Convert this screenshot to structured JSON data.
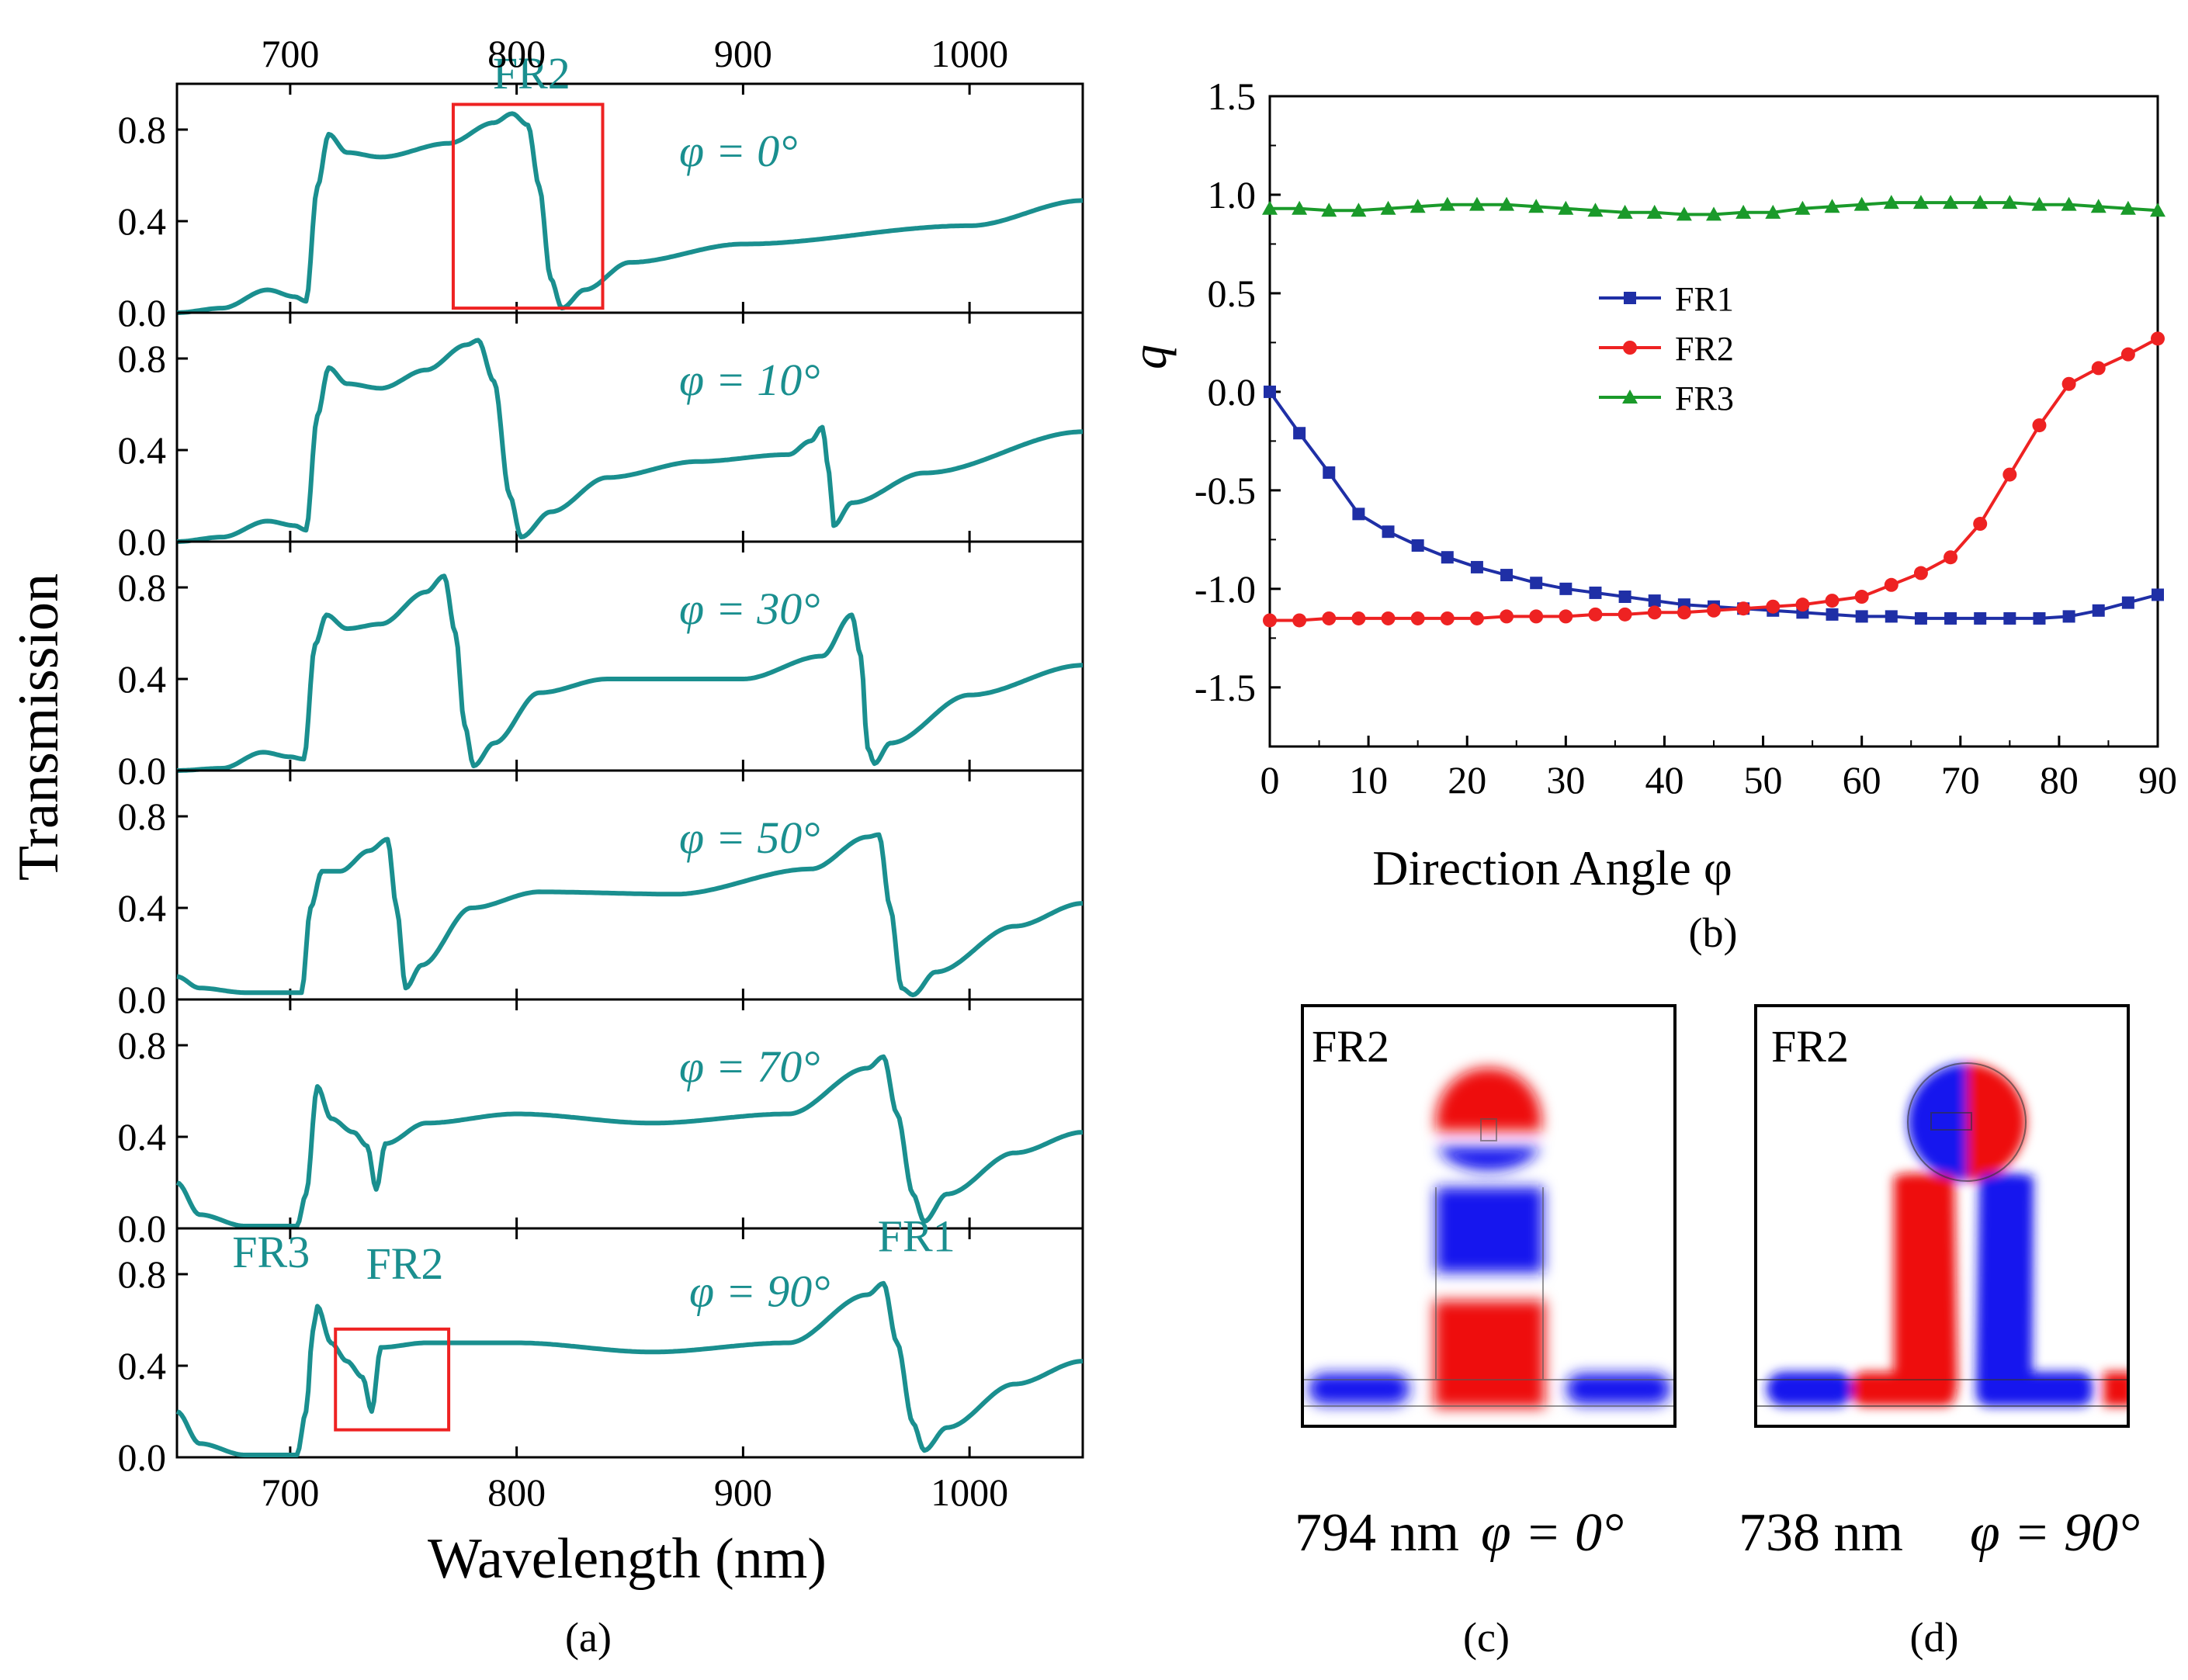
{
  "colors": {
    "teal": "#1a8f8f",
    "fr1": "#1f2fa6",
    "fr2": "#ee2222",
    "fr3": "#1a9a2a",
    "highlight_box": "#ee2222",
    "field_red": "#ee1111",
    "field_blue": "#1515ee"
  },
  "panel_a": {
    "caption": "(a)",
    "ylabel": "Transmission",
    "xlabel": "Wavelength (nm)",
    "xlim": [
      650,
      1050
    ],
    "ylim": [
      0,
      1.0
    ],
    "xticks": [
      "700",
      "800",
      "900",
      "1000"
    ],
    "yticks": [
      "0.0",
      "0.4",
      "0.8"
    ],
    "top_xticks": [
      "700",
      "800",
      "900",
      "1000"
    ],
    "subplots": [
      {
        "angle_label": "φ = 0°",
        "angle_deg": 0,
        "key_points": [
          [
            650,
            0.0
          ],
          [
            670,
            0.02
          ],
          [
            690,
            0.1
          ],
          [
            702,
            0.07
          ],
          [
            707,
            0.05
          ],
          [
            712,
            0.55
          ],
          [
            717,
            0.78
          ],
          [
            725,
            0.7
          ],
          [
            740,
            0.68
          ],
          [
            770,
            0.74
          ],
          [
            790,
            0.83
          ],
          [
            798,
            0.87
          ],
          [
            805,
            0.82
          ],
          [
            810,
            0.55
          ],
          [
            815,
            0.15
          ],
          [
            820,
            0.02
          ],
          [
            830,
            0.1
          ],
          [
            850,
            0.22
          ],
          [
            900,
            0.3
          ],
          [
            1000,
            0.38
          ],
          [
            1050,
            0.49
          ]
        ],
        "annotations": [
          {
            "label": "FR2",
            "x": 810,
            "y": 0.98,
            "box": {
              "x0": 772,
              "x1": 838,
              "y0": 0.02,
              "y1": 0.91
            }
          }
        ]
      },
      {
        "angle_label": "φ = 10°",
        "angle_deg": 10,
        "key_points": [
          [
            650,
            0.0
          ],
          [
            670,
            0.02
          ],
          [
            690,
            0.09
          ],
          [
            702,
            0.07
          ],
          [
            707,
            0.05
          ],
          [
            712,
            0.55
          ],
          [
            717,
            0.76
          ],
          [
            725,
            0.69
          ],
          [
            740,
            0.67
          ],
          [
            760,
            0.75
          ],
          [
            778,
            0.86
          ],
          [
            783,
            0.88
          ],
          [
            790,
            0.7
          ],
          [
            797,
            0.2
          ],
          [
            802,
            0.02
          ],
          [
            815,
            0.13
          ],
          [
            840,
            0.28
          ],
          [
            880,
            0.35
          ],
          [
            920,
            0.38
          ],
          [
            930,
            0.44
          ],
          [
            935,
            0.5
          ],
          [
            938,
            0.3
          ],
          [
            940,
            0.07
          ],
          [
            948,
            0.17
          ],
          [
            980,
            0.3
          ],
          [
            1050,
            0.48
          ]
        ],
        "annotations": []
      },
      {
        "angle_label": "φ = 30°",
        "angle_deg": 30,
        "key_points": [
          [
            650,
            0.0
          ],
          [
            670,
            0.01
          ],
          [
            688,
            0.08
          ],
          [
            700,
            0.06
          ],
          [
            706,
            0.05
          ],
          [
            711,
            0.55
          ],
          [
            716,
            0.68
          ],
          [
            725,
            0.62
          ],
          [
            740,
            0.64
          ],
          [
            760,
            0.78
          ],
          [
            768,
            0.85
          ],
          [
            773,
            0.6
          ],
          [
            777,
            0.2
          ],
          [
            781,
            0.02
          ],
          [
            790,
            0.12
          ],
          [
            810,
            0.34
          ],
          [
            840,
            0.4
          ],
          [
            900,
            0.4
          ],
          [
            935,
            0.5
          ],
          [
            948,
            0.68
          ],
          [
            952,
            0.5
          ],
          [
            955,
            0.1
          ],
          [
            958,
            0.03
          ],
          [
            965,
            0.12
          ],
          [
            1000,
            0.33
          ],
          [
            1050,
            0.46
          ]
        ],
        "annotations": []
      },
      {
        "angle_label": "φ = 50°",
        "angle_deg": 50,
        "key_points": [
          [
            650,
            0.1
          ],
          [
            660,
            0.05
          ],
          [
            680,
            0.03
          ],
          [
            698,
            0.03
          ],
          [
            705,
            0.03
          ],
          [
            709,
            0.4
          ],
          [
            714,
            0.56
          ],
          [
            722,
            0.56
          ],
          [
            735,
            0.65
          ],
          [
            743,
            0.7
          ],
          [
            747,
            0.4
          ],
          [
            751,
            0.05
          ],
          [
            758,
            0.15
          ],
          [
            780,
            0.4
          ],
          [
            810,
            0.47
          ],
          [
            870,
            0.46
          ],
          [
            930,
            0.57
          ],
          [
            955,
            0.71
          ],
          [
            960,
            0.72
          ],
          [
            965,
            0.4
          ],
          [
            970,
            0.05
          ],
          [
            975,
            0.02
          ],
          [
            985,
            0.12
          ],
          [
            1020,
            0.32
          ],
          [
            1050,
            0.42
          ]
        ],
        "annotations": []
      },
      {
        "angle_label": "φ = 70°",
        "angle_deg": 70,
        "key_points": [
          [
            650,
            0.2
          ],
          [
            660,
            0.06
          ],
          [
            680,
            0.01
          ],
          [
            703,
            0.01
          ],
          [
            707,
            0.15
          ],
          [
            712,
            0.62
          ],
          [
            718,
            0.48
          ],
          [
            728,
            0.42
          ],
          [
            734,
            0.36
          ],
          [
            738,
            0.17
          ],
          [
            742,
            0.37
          ],
          [
            760,
            0.46
          ],
          [
            800,
            0.5
          ],
          [
            860,
            0.46
          ],
          [
            920,
            0.5
          ],
          [
            955,
            0.7
          ],
          [
            962,
            0.75
          ],
          [
            968,
            0.5
          ],
          [
            975,
            0.15
          ],
          [
            980,
            0.03
          ],
          [
            990,
            0.15
          ],
          [
            1020,
            0.33
          ],
          [
            1050,
            0.42
          ]
        ],
        "annotations": []
      },
      {
        "angle_label": "φ = 90°",
        "angle_deg": 90,
        "key_points": [
          [
            650,
            0.2
          ],
          [
            660,
            0.06
          ],
          [
            680,
            0.01
          ],
          [
            703,
            0.01
          ],
          [
            707,
            0.2
          ],
          [
            710,
            0.55
          ],
          [
            712,
            0.66
          ],
          [
            718,
            0.5
          ],
          [
            725,
            0.42
          ],
          [
            732,
            0.35
          ],
          [
            736,
            0.2
          ],
          [
            740,
            0.48
          ],
          [
            760,
            0.5
          ],
          [
            800,
            0.5
          ],
          [
            860,
            0.46
          ],
          [
            920,
            0.5
          ],
          [
            955,
            0.71
          ],
          [
            962,
            0.76
          ],
          [
            968,
            0.5
          ],
          [
            975,
            0.15
          ],
          [
            980,
            0.03
          ],
          [
            990,
            0.13
          ],
          [
            1020,
            0.32
          ],
          [
            1050,
            0.42
          ]
        ],
        "annotations": [
          {
            "label": "FR3",
            "x": 695,
            "y": 0.83,
            "box": null
          },
          {
            "label": "FR2",
            "x": 754,
            "y": 0.78,
            "box": {
              "x0": 720,
              "x1": 770,
              "y0": 0.12,
              "y1": 0.56
            }
          },
          {
            "label": "FR1",
            "x": 980,
            "y": 0.9,
            "box": null
          }
        ]
      }
    ]
  },
  "chart_data": {
    "type": "line",
    "title": "",
    "xlabel": "Direction Angle φ",
    "ylabel": "q",
    "xlim": [
      0,
      90
    ],
    "ylim": [
      -1.8,
      1.5
    ],
    "xticks": [
      "0",
      "10",
      "20",
      "30",
      "40",
      "50",
      "60",
      "70",
      "80",
      "90"
    ],
    "yticks": [
      "1.5",
      "1.0",
      "0.5",
      "0.0",
      "-0.5",
      "-1.0",
      "-1.5"
    ],
    "legend_position": "center-left",
    "x": [
      0,
      3,
      6,
      9,
      12,
      15,
      18,
      21,
      24,
      27,
      30,
      33,
      36,
      39,
      42,
      45,
      48,
      51,
      54,
      57,
      60,
      63,
      66,
      69,
      72,
      75,
      78,
      81,
      84,
      87,
      90
    ],
    "series": [
      {
        "name": "FR1",
        "marker": "square",
        "values": [
          0.0,
          -0.21,
          -0.41,
          -0.62,
          -0.71,
          -0.78,
          -0.84,
          -0.89,
          -0.93,
          -0.97,
          -1.0,
          -1.02,
          -1.04,
          -1.06,
          -1.08,
          -1.09,
          -1.1,
          -1.11,
          -1.12,
          -1.13,
          -1.14,
          -1.14,
          -1.15,
          -1.15,
          -1.15,
          -1.15,
          -1.15,
          -1.14,
          -1.11,
          -1.07,
          -1.03
        ]
      },
      {
        "name": "FR2",
        "marker": "circle",
        "values": [
          -1.16,
          -1.16,
          -1.15,
          -1.15,
          -1.15,
          -1.15,
          -1.15,
          -1.15,
          -1.14,
          -1.14,
          -1.14,
          -1.13,
          -1.13,
          -1.12,
          -1.12,
          -1.11,
          -1.1,
          -1.09,
          -1.08,
          -1.06,
          -1.04,
          -0.98,
          -0.92,
          -0.84,
          -0.67,
          -0.42,
          -0.17,
          0.04,
          0.12,
          0.19,
          0.27
        ]
      },
      {
        "name": "FR3",
        "marker": "triangle",
        "values": [
          0.93,
          0.93,
          0.92,
          0.92,
          0.93,
          0.94,
          0.95,
          0.95,
          0.95,
          0.94,
          0.93,
          0.92,
          0.91,
          0.91,
          0.9,
          0.9,
          0.91,
          0.91,
          0.93,
          0.94,
          0.95,
          0.96,
          0.96,
          0.96,
          0.96,
          0.96,
          0.95,
          0.95,
          0.94,
          0.93,
          0.92
        ]
      }
    ]
  },
  "panel_b": {
    "caption": "(b)"
  },
  "panel_c": {
    "mode_label": "FR2",
    "wavelength": "794 nm",
    "angle": "φ = 0°",
    "caption": "(c)"
  },
  "panel_d": {
    "mode_label": "FR2",
    "wavelength": "738 nm",
    "angle": "φ = 90°",
    "caption": "(d)"
  }
}
